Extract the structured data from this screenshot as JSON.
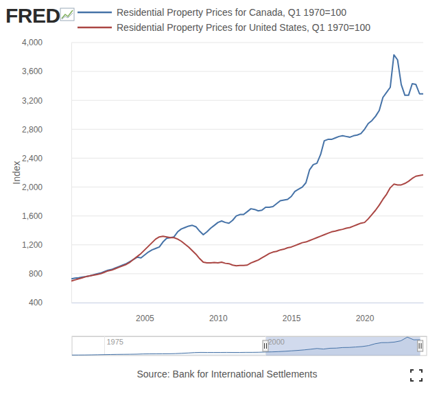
{
  "chart_data": [
    {
      "type": "line",
      "title": "FRED",
      "ylabel": "Index",
      "source": "Source: Bank for International Settlements",
      "legend": "top",
      "grid": true,
      "x": [
        2000,
        2000.25,
        2000.5,
        2000.75,
        2001,
        2001.25,
        2001.5,
        2001.75,
        2002,
        2002.25,
        2002.5,
        2002.75,
        2003,
        2003.25,
        2003.5,
        2003.75,
        2004,
        2004.25,
        2004.5,
        2004.75,
        2005,
        2005.25,
        2005.5,
        2005.75,
        2006,
        2006.25,
        2006.5,
        2006.75,
        2007,
        2007.25,
        2007.5,
        2007.75,
        2008,
        2008.25,
        2008.5,
        2008.75,
        2009,
        2009.25,
        2009.5,
        2009.75,
        2010,
        2010.25,
        2010.5,
        2010.75,
        2011,
        2011.25,
        2011.5,
        2011.75,
        2012,
        2012.25,
        2012.5,
        2012.75,
        2013,
        2013.25,
        2013.5,
        2013.75,
        2014,
        2014.25,
        2014.5,
        2014.75,
        2015,
        2015.25,
        2015.5,
        2015.75,
        2016,
        2016.25,
        2016.5,
        2016.75,
        2017,
        2017.25,
        2017.5,
        2017.75,
        2018,
        2018.25,
        2018.5,
        2018.75,
        2019,
        2019.25,
        2019.5,
        2019.75,
        2020,
        2020.25,
        2020.5,
        2020.75,
        2021,
        2021.25,
        2021.5,
        2021.75,
        2022,
        2022.25,
        2022.5,
        2022.75,
        2023,
        2023.25,
        2023.5,
        2023.75,
        2024
      ],
      "series": [
        {
          "name": "Residential Property Prices for Canada, Q1 1970=100",
          "color": "#4572a7",
          "values": [
            730,
            740,
            745,
            755,
            760,
            770,
            785,
            800,
            810,
            830,
            850,
            860,
            880,
            900,
            920,
            940,
            970,
            1000,
            1030,
            1020,
            1060,
            1100,
            1130,
            1150,
            1170,
            1240,
            1290,
            1300,
            1310,
            1380,
            1420,
            1440,
            1460,
            1470,
            1450,
            1390,
            1340,
            1380,
            1430,
            1470,
            1510,
            1530,
            1510,
            1500,
            1540,
            1600,
            1620,
            1620,
            1660,
            1700,
            1690,
            1670,
            1680,
            1720,
            1720,
            1730,
            1770,
            1810,
            1820,
            1830,
            1870,
            1940,
            1970,
            2000,
            2060,
            2240,
            2310,
            2330,
            2450,
            2640,
            2660,
            2660,
            2680,
            2700,
            2710,
            2700,
            2690,
            2710,
            2720,
            2740,
            2800,
            2880,
            2920,
            2980,
            3060,
            3240,
            3310,
            3380,
            3830,
            3760,
            3420,
            3270,
            3270,
            3430,
            3420,
            3290,
            3290
          ]
        },
        {
          "name": "Residential Property Prices for United States, Q1 1970=100",
          "color": "#aa4643",
          "values": [
            700,
            715,
            730,
            745,
            760,
            770,
            780,
            790,
            800,
            820,
            840,
            850,
            870,
            890,
            910,
            930,
            960,
            1000,
            1040,
            1080,
            1130,
            1180,
            1230,
            1280,
            1310,
            1320,
            1310,
            1300,
            1300,
            1280,
            1250,
            1210,
            1170,
            1120,
            1070,
            1010,
            960,
            950,
            950,
            955,
            950,
            960,
            945,
            940,
            920,
            910,
            915,
            915,
            920,
            950,
            970,
            990,
            1020,
            1050,
            1080,
            1100,
            1110,
            1130,
            1140,
            1160,
            1170,
            1190,
            1210,
            1230,
            1240,
            1260,
            1280,
            1300,
            1320,
            1340,
            1360,
            1380,
            1390,
            1405,
            1415,
            1430,
            1440,
            1460,
            1480,
            1500,
            1510,
            1560,
            1620,
            1680,
            1750,
            1830,
            1900,
            1990,
            2040,
            2030,
            2030,
            2050,
            2080,
            2120,
            2150,
            2160,
            2170
          ]
        }
      ],
      "xlim": [
        2000,
        2024
      ],
      "xticks": [
        2005,
        2010,
        2015,
        2020
      ],
      "ylim": [
        400,
        4000
      ],
      "yticks": [
        400,
        800,
        {
          "value": 1200,
          "label": "1,200"
        },
        {
          "value": 1600,
          "label": "1,600"
        },
        {
          "value": 2000,
          "label": "2,000"
        },
        {
          "value": 2400,
          "label": "2,400"
        },
        {
          "value": 2800,
          "label": "2,800"
        },
        {
          "value": 3200,
          "label": "3,200"
        },
        {
          "value": 3600,
          "label": "3,600"
        },
        {
          "value": 4000,
          "label": "4,000"
        }
      ]
    },
    {
      "type": "area",
      "x": [
        1970,
        1971,
        1972,
        1973,
        1974,
        1975,
        1976,
        1977,
        1978,
        1979,
        1980,
        1981,
        1982,
        1983,
        1984,
        1985,
        1986,
        1987,
        1988,
        1989,
        1990,
        1991,
        1992,
        1993,
        1994,
        1995,
        1996,
        1997,
        1998,
        1999,
        2000,
        2001,
        2002,
        2003,
        2004,
        2005,
        2006,
        2007,
        2008,
        2009,
        2010,
        2011,
        2012,
        2013,
        2014,
        2015,
        2016,
        2017,
        2018,
        2019,
        2020,
        2021,
        2022,
        2023,
        2024
      ],
      "series": [
        {
          "color": "#4572a7",
          "values": [
            100,
            105,
            115,
            135,
            165,
            190,
            215,
            235,
            250,
            265,
            285,
            330,
            345,
            350,
            355,
            370,
            400,
            460,
            530,
            620,
            650,
            640,
            640,
            640,
            650,
            640,
            640,
            660,
            660,
            680,
            730,
            760,
            810,
            880,
            970,
            1060,
            1170,
            1310,
            1460,
            1340,
            1510,
            1540,
            1660,
            1680,
            1770,
            1870,
            2060,
            2450,
            2680,
            2690,
            2800,
            3060,
            3830,
            3270,
            3290
          ]
        }
      ],
      "xlim": [
        1970,
        2025
      ],
      "xticks": [
        1975,
        2000
      ],
      "ylim": [
        0,
        4000
      ],
      "tick_labels": "x"
    }
  ]
}
